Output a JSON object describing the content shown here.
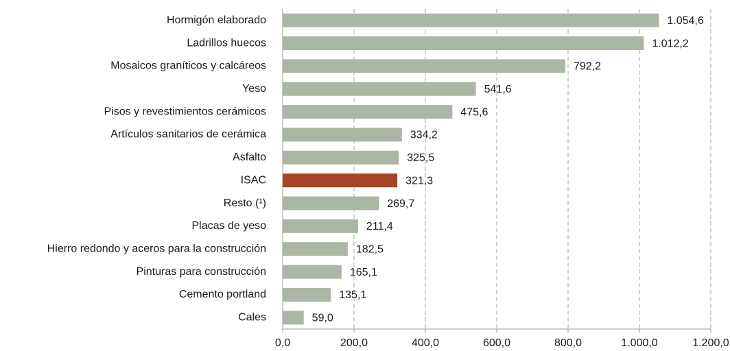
{
  "chart_data": {
    "type": "hbar",
    "categories": [
      "Hormigón elaborado",
      "Ladrillos huecos",
      "Mosaicos graníticos y calcáreos",
      "Yeso",
      "Pisos y revestimientos cerámicos",
      "Artículos sanitarios de cerámica",
      "Asfalto",
      "ISAC",
      "Resto (¹)",
      "Placas de yeso",
      "Hierro redondo y aceros para la construcción",
      "Pinturas para construcción",
      "Cemento portland",
      "Cales"
    ],
    "values": [
      1054.6,
      1012.2,
      792.2,
      541.6,
      475.6,
      334.2,
      325.5,
      321.3,
      269.7,
      211.4,
      182.5,
      165.1,
      135.1,
      59.0
    ],
    "value_labels": [
      "1.054,6",
      "1.012,2",
      "792,2",
      "541,6",
      "475,6",
      "334,2",
      "325,5",
      "321,3",
      "269,7",
      "211,4",
      "182,5",
      "165,1",
      "135,1",
      "59,0"
    ],
    "colors": [
      "#aab7a5",
      "#aab7a5",
      "#aab7a5",
      "#aab7a5",
      "#aab7a5",
      "#aab7a5",
      "#aab7a5",
      "#a6432b",
      "#aab7a5",
      "#aab7a5",
      "#aab7a5",
      "#aab7a5",
      "#aab7a5",
      "#aab7a5"
    ],
    "xlim": [
      0,
      1200
    ],
    "xticks": [
      {
        "value": 0,
        "label": "0,0"
      },
      {
        "value": 200,
        "label": "200,0"
      },
      {
        "value": 400,
        "label": "400,0"
      },
      {
        "value": 600,
        "label": "600,0"
      },
      {
        "value": 800,
        "label": "800,0"
      },
      {
        "value": 1000,
        "label": "1.000,0"
      },
      {
        "value": 1200,
        "label": "1.200,0"
      }
    ],
    "grid": true
  }
}
